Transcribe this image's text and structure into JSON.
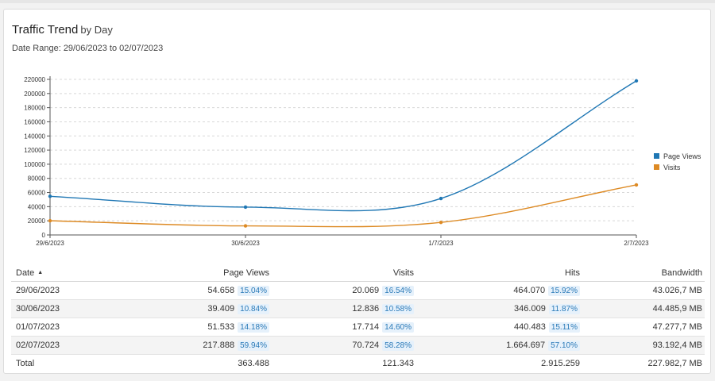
{
  "header": {
    "title": "Traffic Trend",
    "subtitle": "by Day",
    "date_range": "Date Range: 29/06/2023 to 02/07/2023"
  },
  "chart_data": {
    "type": "line",
    "x": [
      "29/6/2023",
      "30/6/2023",
      "1/7/2023",
      "2/7/2023"
    ],
    "series": [
      {
        "name": "Page Views",
        "values": [
          54658,
          39409,
          51533,
          217888
        ],
        "color": "#1f77b4"
      },
      {
        "name": "Visits",
        "values": [
          20069,
          12836,
          17714,
          70724
        ],
        "color": "#dd8a24"
      }
    ],
    "ylim": [
      0,
      220000
    ],
    "yticks": [
      0,
      20000,
      40000,
      60000,
      80000,
      100000,
      120000,
      140000,
      160000,
      180000,
      200000,
      220000
    ],
    "grid": true,
    "legend": "right"
  },
  "table": {
    "headers": {
      "date": "Date",
      "page_views": "Page Views",
      "visits": "Visits",
      "hits": "Hits",
      "bandwidth": "Bandwidth"
    },
    "sort_icon": "sort-up-icon",
    "rows": [
      {
        "date": "29/06/2023",
        "page_views": "54.658",
        "pv_pct": "15.04%",
        "visits": "20.069",
        "visits_pct": "16.54%",
        "hits": "464.070",
        "hits_pct": "15.92%",
        "bandwidth": "43.026,7 MB"
      },
      {
        "date": "30/06/2023",
        "page_views": "39.409",
        "pv_pct": "10.84%",
        "visits": "12.836",
        "visits_pct": "10.58%",
        "hits": "346.009",
        "hits_pct": "11.87%",
        "bandwidth": "44.485,9 MB"
      },
      {
        "date": "01/07/2023",
        "page_views": "51.533",
        "pv_pct": "14.18%",
        "visits": "17.714",
        "visits_pct": "14.60%",
        "hits": "440.483",
        "hits_pct": "15.11%",
        "bandwidth": "47.277,7 MB"
      },
      {
        "date": "02/07/2023",
        "page_views": "217.888",
        "pv_pct": "59.94%",
        "visits": "70.724",
        "visits_pct": "58.28%",
        "hits": "1.664.697",
        "hits_pct": "57.10%",
        "bandwidth": "93.192,4 MB"
      }
    ],
    "total": {
      "label": "Total",
      "page_views": "363.488",
      "visits": "121.343",
      "hits": "2.915.259",
      "bandwidth": "227.982,7 MB"
    }
  }
}
